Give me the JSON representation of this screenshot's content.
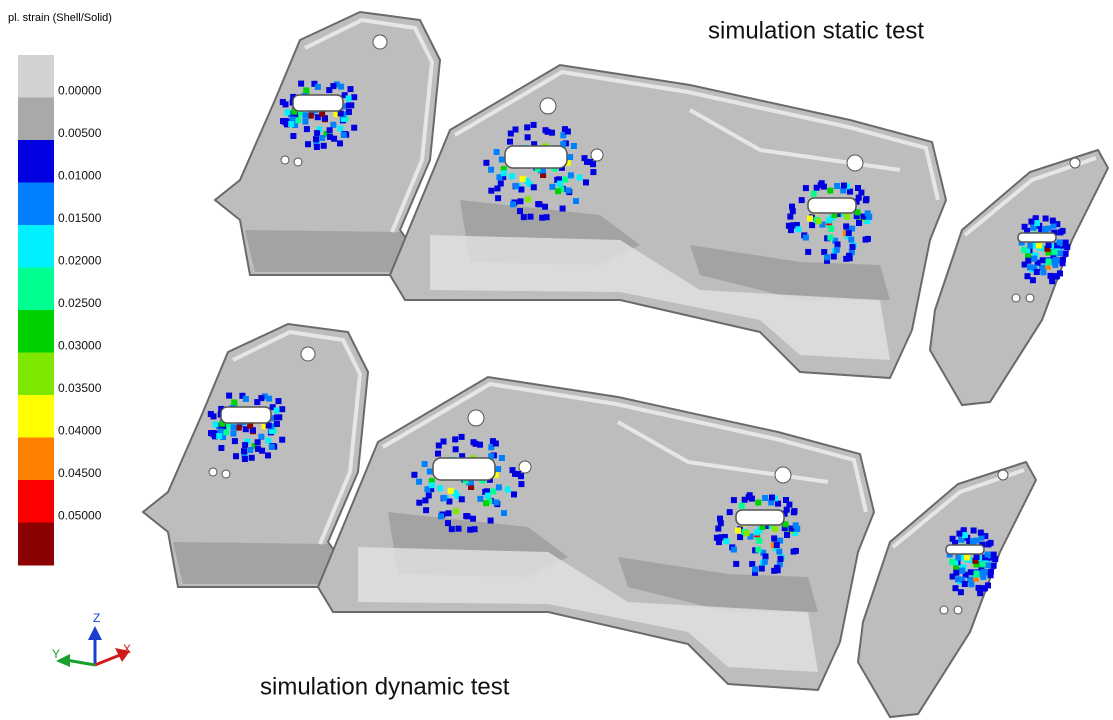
{
  "legend": {
    "title": "pl. strain (Shell/Solid)",
    "labels": [
      "0.00000",
      "0.00500",
      "0.01000",
      "0.01500",
      "0.02000",
      "0.02500",
      "0.03000",
      "0.03500",
      "0.04000",
      "0.04500",
      "0.05000"
    ],
    "colors": [
      "#d2d2d2",
      "#a9a9a9",
      "#0000e0",
      "#0080ff",
      "#00f0ff",
      "#00ff90",
      "#00d200",
      "#80e800",
      "#ffff00",
      "#ff8000",
      "#ff0000",
      "#8b0000"
    ]
  },
  "captions": {
    "static": "simulation static test",
    "dynamic": "simulation dynamic test"
  },
  "triad": {
    "z": "Z",
    "y": "Y",
    "x": "X"
  }
}
